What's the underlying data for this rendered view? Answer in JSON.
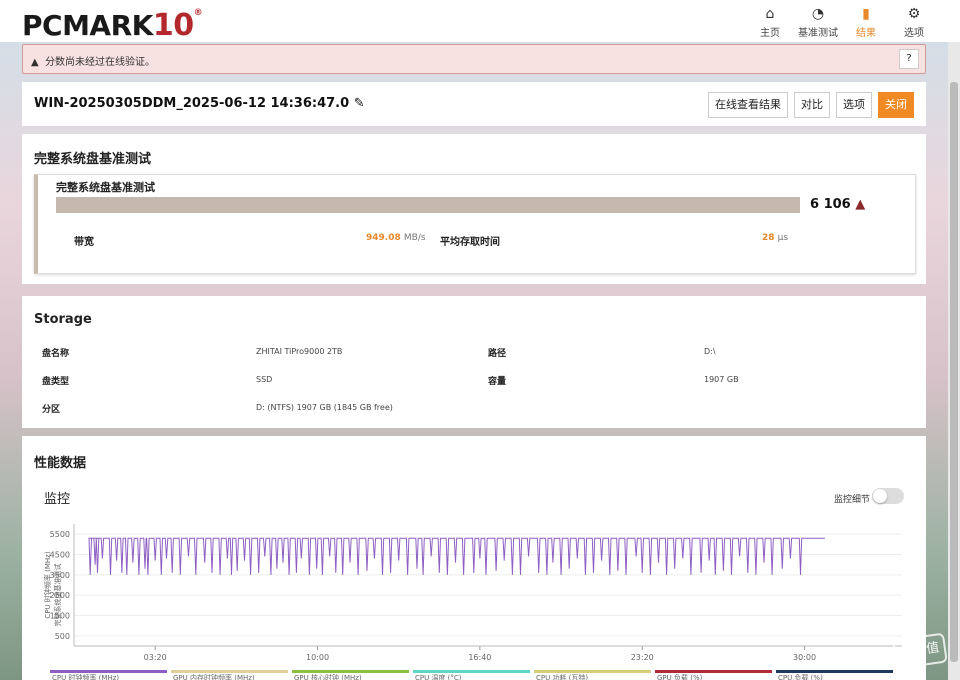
{
  "app": {
    "logo": "PCMARK",
    "logo_num": "10",
    "logo_reg": "®"
  },
  "nav": [
    {
      "label": "主页",
      "icon": "home-icon",
      "glyph": "⌂"
    },
    {
      "label": "基准测试",
      "icon": "gauge-icon",
      "glyph": "◔"
    },
    {
      "label": "结果",
      "icon": "bar-chart-icon",
      "glyph": "▮"
    },
    {
      "label": "选项",
      "icon": "gear-icon",
      "glyph": "⚙"
    }
  ],
  "nav_active": "结果",
  "warning": {
    "text": "分数尚未经过在线验证。",
    "icon": "warning-icon",
    "help_label": "?"
  },
  "result": {
    "title": "WIN-20250305DDM_2025-06-12 14:36:47.0",
    "edit_icon": "pencil-icon",
    "buttons": {
      "view_online": "在线查看结果",
      "compare": "对比",
      "options": "选项",
      "close": "关闭"
    }
  },
  "test": {
    "section_title": "完整系统盘基准测试",
    "card_title": "完整系统盘基准测试",
    "score": "6 106",
    "score_icon": "warning-triangle-icon",
    "bandwidth_label": "带宽",
    "bandwidth_value": "949.08",
    "bandwidth_unit": "MB/s",
    "latency_label": "平均存取时间",
    "latency_value": "28",
    "latency_unit": "μs"
  },
  "storage": {
    "section_title": "Storage",
    "rows": [
      {
        "label": "盘名称",
        "value": "ZHITAI TiPro9000 2TB"
      },
      {
        "label": "路径",
        "value": "D:\\"
      },
      {
        "label": "盘类型",
        "value": "SSD"
      },
      {
        "label": "容量",
        "value": "1907 GB"
      },
      {
        "label": "分区",
        "value": "D: (NTFS) 1907 GB (1845 GB free)"
      }
    ]
  },
  "perf": {
    "section_title": "性能数据",
    "monitor_title": "监控",
    "toggle_label": "监控细节",
    "legend": [
      {
        "label": "CPU 时钟频率 (MHz)",
        "color": "#8e5fc3"
      },
      {
        "label": "GPU 内存时钟频率 (MHz)",
        "color": "#e0cf96"
      },
      {
        "label": "GPU 核心时钟 (MHz)",
        "color": "#8bbf3f"
      },
      {
        "label": "CPU 温度 (°C)",
        "color": "#5fd6c4"
      },
      {
        "label": "CPU 功耗 (瓦特)",
        "color": "#d6cf7a"
      },
      {
        "label": "GPU 负载 (%)",
        "color": "#b02a3a"
      },
      {
        "label": "CPU 负载 (%)",
        "color": "#1e3a5f"
      }
    ]
  },
  "chart_data": {
    "type": "line",
    "title": "",
    "ylabel": "CPU 时钟频率 (MHz)",
    "ylabel2": "完整系统盘基准测试",
    "xlabel": "",
    "yticks": [
      500,
      1500,
      2500,
      3500,
      4500,
      5500
    ],
    "ylim": [
      0,
      6000
    ],
    "xticks": [
      "03:20",
      "10:00",
      "16:40",
      "23:20",
      "30:00"
    ],
    "xlim_seconds": [
      0,
      2040
    ],
    "series": [
      {
        "name": "CPU 时钟频率 (MHz)",
        "color": "#8e5fc3",
        "baseline": 5300,
        "dips_x": [
          40,
          52,
          58,
          70,
          90,
          105,
          118,
          130,
          145,
          160,
          175,
          182,
          200,
          215,
          228,
          242,
          262,
          282,
          300,
          322,
          340,
          360,
          378,
          388,
          402,
          420,
          435,
          455,
          470,
          485,
          500,
          515,
          530,
          548,
          560,
          580,
          598,
          612,
          630,
          645,
          662,
          680,
          700,
          722,
          740,
          760,
          780,
          800,
          822,
          845,
          860,
          880,
          900,
          920,
          940,
          960,
          985,
          1000,
          1015,
          1040,
          1060,
          1080,
          1100,
          1120,
          1145,
          1165,
          1180,
          1200,
          1220,
          1240,
          1260,
          1280,
          1300,
          1320,
          1340,
          1360,
          1385,
          1400,
          1420,
          1440,
          1460,
          1480,
          1500,
          1520,
          1545,
          1565,
          1580,
          1600,
          1620,
          1640,
          1660,
          1680,
          1700,
          1720,
          1745,
          1765,
          1790
        ],
        "dips_y": [
          3500,
          4000,
          3600,
          4300,
          3500,
          4200,
          3600,
          3500,
          4100,
          3500,
          3800,
          3500,
          4200,
          3500,
          4300,
          3600,
          3500,
          4400,
          3500,
          4100,
          3600,
          3500,
          4300,
          3500,
          3700,
          4200,
          3500,
          3600,
          4400,
          3500,
          3800,
          4100,
          3500,
          3600,
          4300,
          3500,
          3800,
          3500,
          4400,
          3600,
          3500,
          4100,
          3500,
          3700,
          4300,
          3500,
          3600,
          4200,
          3500,
          3800,
          3500,
          4400,
          3600,
          3500,
          4100,
          3500,
          3600,
          4300,
          3500,
          3700,
          4200,
          3500,
          3500,
          4400,
          3600,
          3500,
          4100,
          3500,
          3800,
          4300,
          3500,
          3600,
          4200,
          3500,
          3700,
          3500,
          4400,
          3600,
          3500,
          4100,
          3500,
          3800,
          4300,
          3500,
          3600,
          4200,
          3500,
          3700,
          3500,
          4400,
          3600,
          3500,
          4100,
          3500,
          3800,
          4300,
          3500
        ],
        "end_x": 1850
      }
    ]
  }
}
